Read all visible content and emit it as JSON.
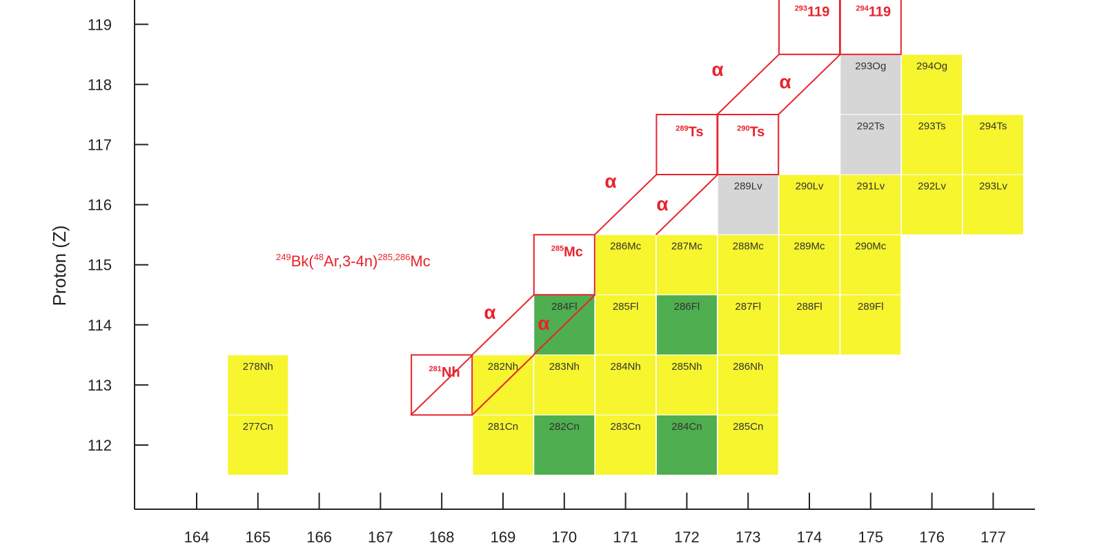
{
  "axes": {
    "x_ticks": [
      164,
      165,
      166,
      167,
      168,
      169,
      170,
      171,
      172,
      173,
      174,
      175,
      176,
      177
    ],
    "y_ticks": [
      112,
      113,
      114,
      115,
      116,
      117,
      118,
      119
    ],
    "y_label": "Proton (Z)"
  },
  "cells": [
    {
      "n": 165,
      "z": 112,
      "label": "277Cn",
      "color": "#f6f52e"
    },
    {
      "n": 169,
      "z": 112,
      "label": "281Cn",
      "color": "#f6f52e"
    },
    {
      "n": 170,
      "z": 112,
      "label": "282Cn",
      "color": "#4fae4f"
    },
    {
      "n": 171,
      "z": 112,
      "label": "283Cn",
      "color": "#f6f52e"
    },
    {
      "n": 172,
      "z": 112,
      "label": "284Cn",
      "color": "#4fae4f"
    },
    {
      "n": 173,
      "z": 112,
      "label": "285Cn",
      "color": "#f6f52e"
    },
    {
      "n": 165,
      "z": 113,
      "label": "278Nh",
      "color": "#f6f52e"
    },
    {
      "n": 169,
      "z": 113,
      "label": "282Nh",
      "color": "#f6f52e"
    },
    {
      "n": 170,
      "z": 113,
      "label": "283Nh",
      "color": "#f6f52e"
    },
    {
      "n": 171,
      "z": 113,
      "label": "284Nh",
      "color": "#f6f52e"
    },
    {
      "n": 172,
      "z": 113,
      "label": "285Nh",
      "color": "#f6f52e"
    },
    {
      "n": 173,
      "z": 113,
      "label": "286Nh",
      "color": "#f6f52e"
    },
    {
      "n": 170,
      "z": 114,
      "label": "284Fl",
      "color": "#4fae4f"
    },
    {
      "n": 171,
      "z": 114,
      "label": "285Fl",
      "color": "#f6f52e"
    },
    {
      "n": 172,
      "z": 114,
      "label": "286Fl",
      "color": "#4fae4f"
    },
    {
      "n": 173,
      "z": 114,
      "label": "287Fl",
      "color": "#f6f52e"
    },
    {
      "n": 174,
      "z": 114,
      "label": "288Fl",
      "color": "#f6f52e"
    },
    {
      "n": 175,
      "z": 114,
      "label": "289Fl",
      "color": "#f6f52e"
    },
    {
      "n": 171,
      "z": 115,
      "label": "286Mc",
      "color": "#f6f52e"
    },
    {
      "n": 172,
      "z": 115,
      "label": "287Mc",
      "color": "#f6f52e"
    },
    {
      "n": 173,
      "z": 115,
      "label": "288Mc",
      "color": "#f6f52e"
    },
    {
      "n": 174,
      "z": 115,
      "label": "289Mc",
      "color": "#f6f52e"
    },
    {
      "n": 175,
      "z": 115,
      "label": "290Mc",
      "color": "#f6f52e"
    },
    {
      "n": 173,
      "z": 116,
      "label": "289Lv",
      "color": "#d6d6d6"
    },
    {
      "n": 174,
      "z": 116,
      "label": "290Lv",
      "color": "#f6f52e"
    },
    {
      "n": 175,
      "z": 116,
      "label": "291Lv",
      "color": "#f6f52e"
    },
    {
      "n": 176,
      "z": 116,
      "label": "292Lv",
      "color": "#f6f52e"
    },
    {
      "n": 177,
      "z": 116,
      "label": "293Lv",
      "color": "#f6f52e"
    },
    {
      "n": 175,
      "z": 117,
      "label": "292Ts",
      "color": "#d6d6d6"
    },
    {
      "n": 176,
      "z": 117,
      "label": "293Ts",
      "color": "#f6f52e"
    },
    {
      "n": 177,
      "z": 117,
      "label": "294Ts",
      "color": "#f6f52e"
    },
    {
      "n": 175,
      "z": 118,
      "label": "293Og",
      "color": "#d6d6d6"
    },
    {
      "n": 176,
      "z": 118,
      "label": "294Og",
      "color": "#f6f52e"
    }
  ],
  "targets": [
    {
      "n": 168,
      "z": 113,
      "mass": "281",
      "symbol": "Nh"
    },
    {
      "n": 170,
      "z": 115,
      "mass": "285",
      "symbol": "Mc"
    },
    {
      "n": 172,
      "z": 117,
      "mass": "289",
      "symbol": "Ts"
    },
    {
      "n": 173,
      "z": 117,
      "mass": "290",
      "symbol": "Ts"
    },
    {
      "n": 174,
      "z": 119,
      "mass": "293",
      "symbol": "119"
    },
    {
      "n": 175,
      "z": 119,
      "mass": "294",
      "symbol": "119"
    }
  ],
  "alpha_labels": [
    "α",
    "α",
    "α",
    "α",
    "α",
    "α"
  ],
  "reaction": [
    "249",
    "Bk(",
    "48",
    "Ar,3-4n)",
    "285,286",
    "Mc"
  ]
}
